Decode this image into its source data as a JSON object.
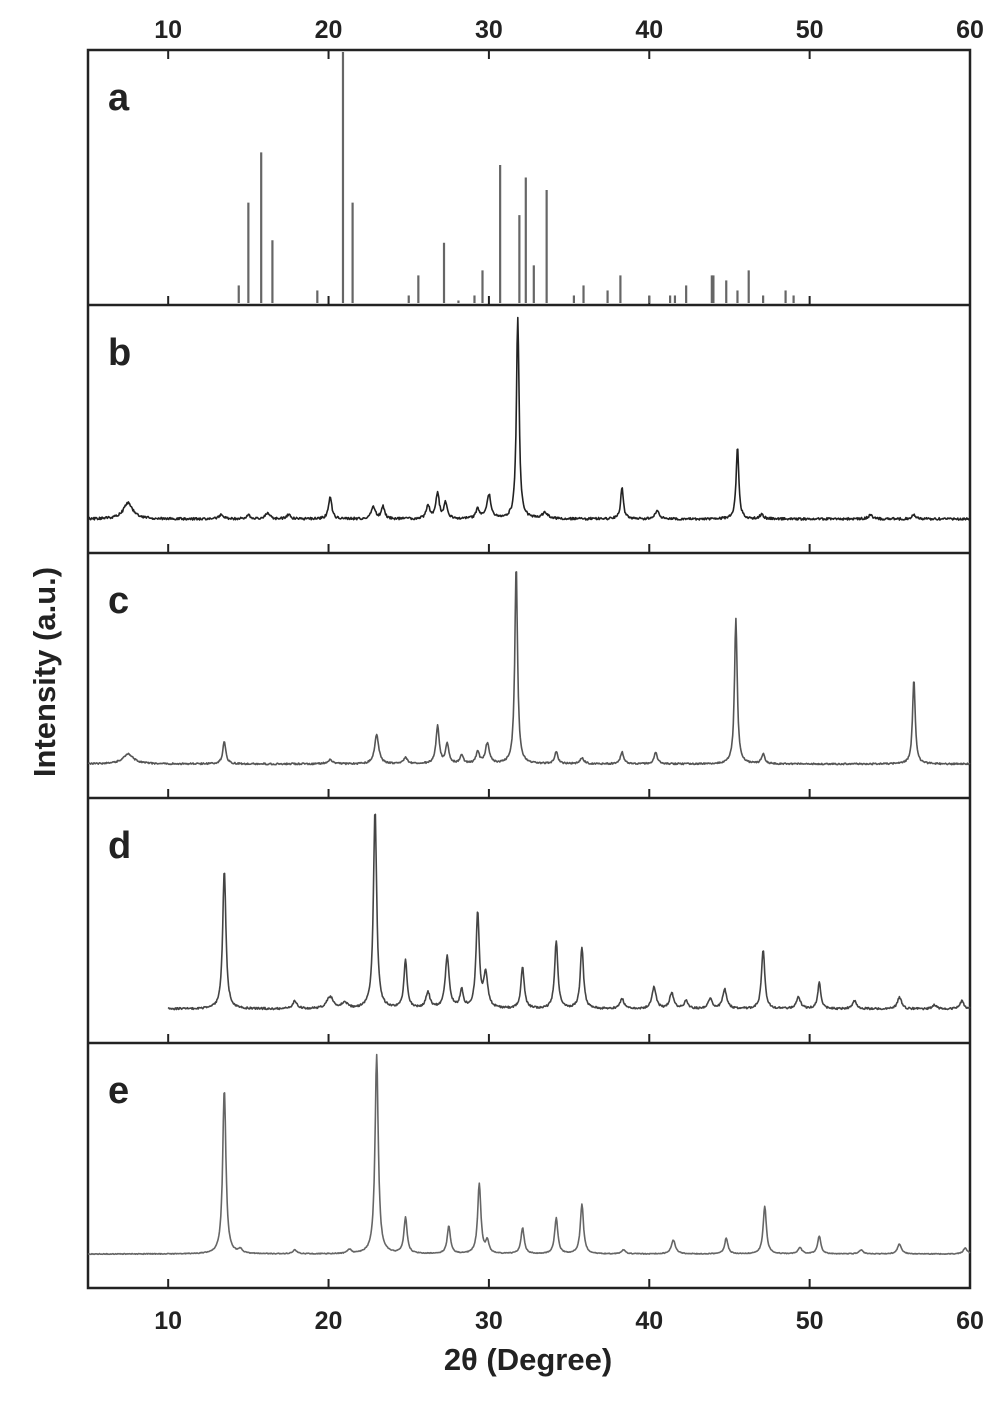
{
  "chart_data": {
    "type": "line",
    "xlabel": "2θ (Degree)",
    "ylabel": "Intensity (a.u.)",
    "xlim": [
      5,
      60
    ],
    "x_ticks": [
      10,
      20,
      30,
      40,
      50,
      60
    ],
    "x_tick_labels": [
      "10",
      "20",
      "30",
      "40",
      "50",
      "60"
    ],
    "ticks_on": [
      "top",
      "bottom"
    ],
    "grid": false,
    "legend": "none",
    "panel_order": [
      "a",
      "b",
      "c",
      "d",
      "e"
    ],
    "panels": [
      {
        "label": "a",
        "style": "stick",
        "color": "#666666",
        "peaks": [
          {
            "x": 14.4,
            "y": 0.07
          },
          {
            "x": 15.0,
            "y": 0.4
          },
          {
            "x": 15.8,
            "y": 0.6
          },
          {
            "x": 16.5,
            "y": 0.25
          },
          {
            "x": 19.3,
            "y": 0.05
          },
          {
            "x": 20.9,
            "y": 1.0
          },
          {
            "x": 21.5,
            "y": 0.4
          },
          {
            "x": 25.0,
            "y": 0.03
          },
          {
            "x": 25.6,
            "y": 0.11
          },
          {
            "x": 27.2,
            "y": 0.24
          },
          {
            "x": 28.1,
            "y": 0.01
          },
          {
            "x": 29.1,
            "y": 0.03
          },
          {
            "x": 29.6,
            "y": 0.13
          },
          {
            "x": 30.7,
            "y": 0.55
          },
          {
            "x": 31.9,
            "y": 0.35
          },
          {
            "x": 32.3,
            "y": 0.5
          },
          {
            "x": 32.8,
            "y": 0.15
          },
          {
            "x": 33.6,
            "y": 0.45
          },
          {
            "x": 35.3,
            "y": 0.03
          },
          {
            "x": 35.9,
            "y": 0.07
          },
          {
            "x": 37.4,
            "y": 0.05
          },
          {
            "x": 38.2,
            "y": 0.11
          },
          {
            "x": 40.0,
            "y": 0.03
          },
          {
            "x": 41.3,
            "y": 0.03
          },
          {
            "x": 41.6,
            "y": 0.03
          },
          {
            "x": 42.3,
            "y": 0.07
          },
          {
            "x": 43.9,
            "y": 0.11
          },
          {
            "x": 44.0,
            "y": 0.11
          },
          {
            "x": 44.8,
            "y": 0.09
          },
          {
            "x": 45.5,
            "y": 0.05
          },
          {
            "x": 46.2,
            "y": 0.13
          },
          {
            "x": 47.1,
            "y": 0.03
          },
          {
            "x": 48.5,
            "y": 0.05
          },
          {
            "x": 49.0,
            "y": 0.03
          }
        ]
      },
      {
        "label": "b",
        "style": "trace",
        "color": "#222222",
        "noise": 0.012,
        "baseline": 0.0,
        "peaks": [
          {
            "x": 7.5,
            "y": 0.08,
            "w": 0.35
          },
          {
            "x": 13.3,
            "y": 0.02,
            "w": 0.15
          },
          {
            "x": 15.0,
            "y": 0.02,
            "w": 0.15
          },
          {
            "x": 16.2,
            "y": 0.03,
            "w": 0.15
          },
          {
            "x": 17.5,
            "y": 0.02,
            "w": 0.15
          },
          {
            "x": 20.1,
            "y": 0.11,
            "w": 0.12
          },
          {
            "x": 22.8,
            "y": 0.06,
            "w": 0.15
          },
          {
            "x": 23.4,
            "y": 0.06,
            "w": 0.12
          },
          {
            "x": 26.2,
            "y": 0.07,
            "w": 0.12
          },
          {
            "x": 26.8,
            "y": 0.13,
            "w": 0.12
          },
          {
            "x": 27.3,
            "y": 0.08,
            "w": 0.12
          },
          {
            "x": 29.3,
            "y": 0.05,
            "w": 0.12
          },
          {
            "x": 30.0,
            "y": 0.12,
            "w": 0.15
          },
          {
            "x": 31.8,
            "y": 1.0,
            "w": 0.1
          },
          {
            "x": 33.5,
            "y": 0.03,
            "w": 0.2
          },
          {
            "x": 38.3,
            "y": 0.16,
            "w": 0.1
          },
          {
            "x": 40.5,
            "y": 0.04,
            "w": 0.15
          },
          {
            "x": 45.5,
            "y": 0.36,
            "w": 0.1
          },
          {
            "x": 47.0,
            "y": 0.02,
            "w": 0.15
          },
          {
            "x": 53.8,
            "y": 0.02,
            "w": 0.15
          },
          {
            "x": 56.5,
            "y": 0.02,
            "w": 0.15
          }
        ]
      },
      {
        "label": "c",
        "style": "trace",
        "color": "#555555",
        "noise": 0.008,
        "baseline": 0.0,
        "peaks": [
          {
            "x": 7.5,
            "y": 0.05,
            "w": 0.4
          },
          {
            "x": 13.5,
            "y": 0.11,
            "w": 0.12
          },
          {
            "x": 20.1,
            "y": 0.02,
            "w": 0.2
          },
          {
            "x": 23.0,
            "y": 0.15,
            "w": 0.15
          },
          {
            "x": 24.8,
            "y": 0.03,
            "w": 0.15
          },
          {
            "x": 26.8,
            "y": 0.19,
            "w": 0.12
          },
          {
            "x": 27.4,
            "y": 0.1,
            "w": 0.12
          },
          {
            "x": 28.3,
            "y": 0.04,
            "w": 0.12
          },
          {
            "x": 29.3,
            "y": 0.06,
            "w": 0.12
          },
          {
            "x": 29.9,
            "y": 0.1,
            "w": 0.15
          },
          {
            "x": 31.7,
            "y": 1.0,
            "w": 0.1
          },
          {
            "x": 34.2,
            "y": 0.06,
            "w": 0.12
          },
          {
            "x": 35.8,
            "y": 0.03,
            "w": 0.15
          },
          {
            "x": 38.3,
            "y": 0.06,
            "w": 0.12
          },
          {
            "x": 40.4,
            "y": 0.06,
            "w": 0.12
          },
          {
            "x": 45.4,
            "y": 0.73,
            "w": 0.1
          },
          {
            "x": 47.1,
            "y": 0.05,
            "w": 0.12
          },
          {
            "x": 56.5,
            "y": 0.43,
            "w": 0.1
          }
        ]
      },
      {
        "label": "d",
        "style": "trace",
        "color": "#444444",
        "noise": 0.01,
        "baseline": 0.0,
        "start_x": 10,
        "peaks": [
          {
            "x": 13.5,
            "y": 0.7,
            "w": 0.12
          },
          {
            "x": 17.9,
            "y": 0.04,
            "w": 0.15
          },
          {
            "x": 20.1,
            "y": 0.06,
            "w": 0.25
          },
          {
            "x": 21.0,
            "y": 0.03,
            "w": 0.2
          },
          {
            "x": 22.9,
            "y": 1.0,
            "w": 0.12
          },
          {
            "x": 24.8,
            "y": 0.24,
            "w": 0.12
          },
          {
            "x": 26.2,
            "y": 0.08,
            "w": 0.15
          },
          {
            "x": 27.4,
            "y": 0.26,
            "w": 0.15
          },
          {
            "x": 28.3,
            "y": 0.09,
            "w": 0.12
          },
          {
            "x": 29.3,
            "y": 0.48,
            "w": 0.12
          },
          {
            "x": 29.8,
            "y": 0.17,
            "w": 0.15
          },
          {
            "x": 32.1,
            "y": 0.21,
            "w": 0.12
          },
          {
            "x": 34.2,
            "y": 0.34,
            "w": 0.12
          },
          {
            "x": 35.8,
            "y": 0.31,
            "w": 0.12
          },
          {
            "x": 38.3,
            "y": 0.05,
            "w": 0.15
          },
          {
            "x": 40.3,
            "y": 0.11,
            "w": 0.15
          },
          {
            "x": 41.4,
            "y": 0.08,
            "w": 0.15
          },
          {
            "x": 42.3,
            "y": 0.04,
            "w": 0.15
          },
          {
            "x": 43.8,
            "y": 0.05,
            "w": 0.15
          },
          {
            "x": 44.7,
            "y": 0.1,
            "w": 0.15
          },
          {
            "x": 47.1,
            "y": 0.3,
            "w": 0.12
          },
          {
            "x": 49.3,
            "y": 0.06,
            "w": 0.15
          },
          {
            "x": 50.6,
            "y": 0.13,
            "w": 0.12
          },
          {
            "x": 52.8,
            "y": 0.04,
            "w": 0.15
          },
          {
            "x": 55.6,
            "y": 0.06,
            "w": 0.15
          },
          {
            "x": 57.8,
            "y": 0.02,
            "w": 0.15
          },
          {
            "x": 59.5,
            "y": 0.04,
            "w": 0.15
          }
        ]
      },
      {
        "label": "e",
        "style": "trace",
        "color": "#666666",
        "noise": 0.004,
        "baseline": 0.0,
        "peaks": [
          {
            "x": 13.5,
            "y": 0.83,
            "w": 0.12
          },
          {
            "x": 14.5,
            "y": 0.02,
            "w": 0.15
          },
          {
            "x": 17.9,
            "y": 0.02,
            "w": 0.15
          },
          {
            "x": 21.3,
            "y": 0.02,
            "w": 0.15
          },
          {
            "x": 23.0,
            "y": 1.0,
            "w": 0.12
          },
          {
            "x": 24.8,
            "y": 0.18,
            "w": 0.12
          },
          {
            "x": 27.5,
            "y": 0.14,
            "w": 0.12
          },
          {
            "x": 29.4,
            "y": 0.35,
            "w": 0.12
          },
          {
            "x": 29.9,
            "y": 0.06,
            "w": 0.12
          },
          {
            "x": 32.1,
            "y": 0.13,
            "w": 0.12
          },
          {
            "x": 34.2,
            "y": 0.18,
            "w": 0.12
          },
          {
            "x": 35.8,
            "y": 0.25,
            "w": 0.12
          },
          {
            "x": 38.4,
            "y": 0.02,
            "w": 0.15
          },
          {
            "x": 41.5,
            "y": 0.07,
            "w": 0.15
          },
          {
            "x": 44.8,
            "y": 0.08,
            "w": 0.12
          },
          {
            "x": 47.2,
            "y": 0.24,
            "w": 0.12
          },
          {
            "x": 49.4,
            "y": 0.03,
            "w": 0.15
          },
          {
            "x": 50.6,
            "y": 0.09,
            "w": 0.12
          },
          {
            "x": 53.2,
            "y": 0.02,
            "w": 0.15
          },
          {
            "x": 55.6,
            "y": 0.05,
            "w": 0.15
          },
          {
            "x": 59.7,
            "y": 0.03,
            "w": 0.15
          }
        ]
      }
    ]
  }
}
